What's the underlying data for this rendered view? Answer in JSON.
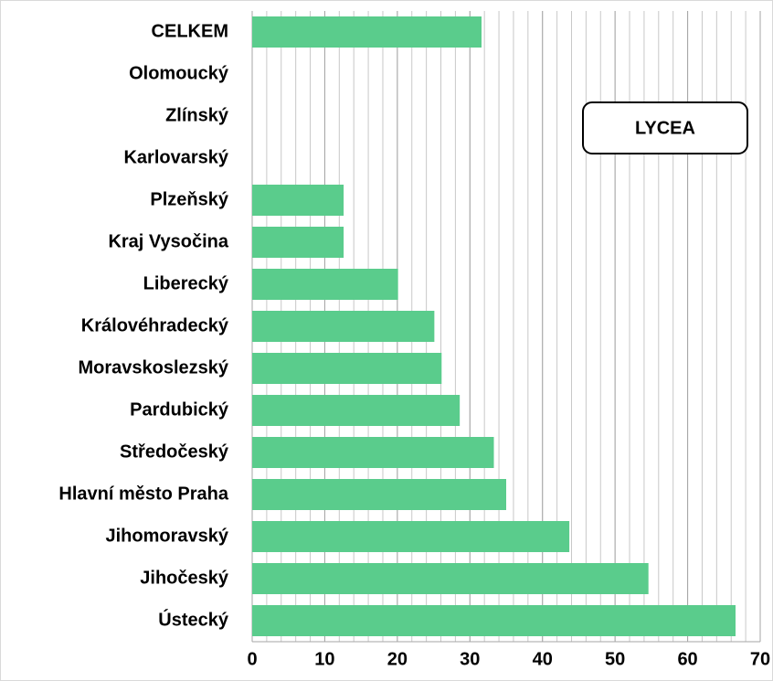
{
  "chart_data": {
    "type": "barh",
    "title": "LYCEA",
    "categories": [
      "CELKEM",
      "Olomoucký",
      "Zlínský",
      "Karlovarský",
      "Plzeňský",
      "Kraj Vysočina",
      "Liberecký",
      "Královéhradecký",
      "Moravskoslezský",
      "Pardubický",
      "Středočeský",
      "Hlavní město Praha",
      "Jihomoravský",
      "Jihočeský",
      "Ústecký"
    ],
    "values": [
      31.6,
      0,
      0,
      0,
      12.6,
      12.6,
      20.1,
      25.1,
      26.1,
      28.6,
      33.3,
      35.0,
      43.7,
      54.6,
      66.6
    ],
    "color": "#5acc8c",
    "xlim": [
      0,
      70
    ],
    "xticks": [
      0,
      10,
      20,
      30,
      40,
      50,
      60,
      70
    ],
    "minor_step": 2,
    "grid": true
  }
}
